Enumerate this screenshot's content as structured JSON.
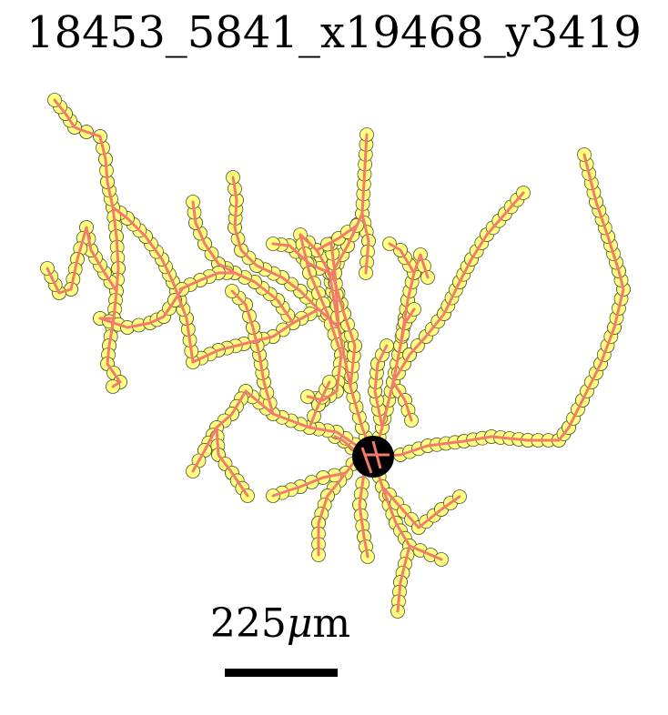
{
  "title": "18453_5841_x19468_y3419",
  "scale_bar": {
    "value": "225",
    "unit_symbol": "μ",
    "unit": "m"
  },
  "colors": {
    "neurite": "#f47a6c",
    "node_fill": "#ffff80",
    "node_stroke": "#555533",
    "soma": "#000000"
  }
}
